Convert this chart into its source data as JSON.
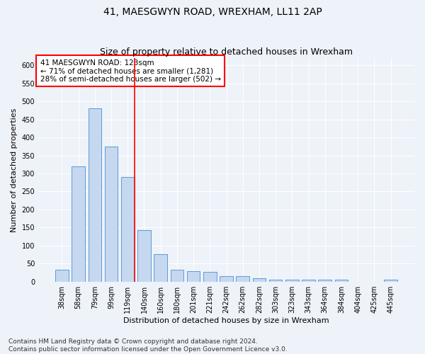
{
  "title": "41, MAESGWYN ROAD, WREXHAM, LL11 2AP",
  "subtitle": "Size of property relative to detached houses in Wrexham",
  "xlabel": "Distribution of detached houses by size in Wrexham",
  "ylabel": "Number of detached properties",
  "categories": [
    "38sqm",
    "58sqm",
    "79sqm",
    "99sqm",
    "119sqm",
    "140sqm",
    "160sqm",
    "180sqm",
    "201sqm",
    "221sqm",
    "242sqm",
    "262sqm",
    "282sqm",
    "303sqm",
    "323sqm",
    "343sqm",
    "364sqm",
    "384sqm",
    "404sqm",
    "425sqm",
    "445sqm"
  ],
  "values": [
    32,
    320,
    480,
    375,
    290,
    143,
    76,
    32,
    29,
    27,
    16,
    16,
    9,
    6,
    5,
    5,
    5,
    5,
    0,
    0,
    5
  ],
  "bar_color": "#c5d8f0",
  "bar_edge_color": "#5b9bd5",
  "vline_color": "red",
  "annotation_text": "41 MAESGWYN ROAD: 123sqm\n← 71% of detached houses are smaller (1,281)\n28% of semi-detached houses are larger (502) →",
  "annotation_box_color": "white",
  "annotation_box_edge": "red",
  "ylim": [
    0,
    620
  ],
  "yticks": [
    0,
    50,
    100,
    150,
    200,
    250,
    300,
    350,
    400,
    450,
    500,
    550,
    600
  ],
  "footer": "Contains HM Land Registry data © Crown copyright and database right 2024.\nContains public sector information licensed under the Open Government Licence v3.0.",
  "background_color": "#eef2f9",
  "grid_color": "white",
  "title_fontsize": 10,
  "subtitle_fontsize": 9,
  "axis_label_fontsize": 8,
  "tick_fontsize": 7,
  "footer_fontsize": 6.5,
  "annotation_fontsize": 7.5
}
